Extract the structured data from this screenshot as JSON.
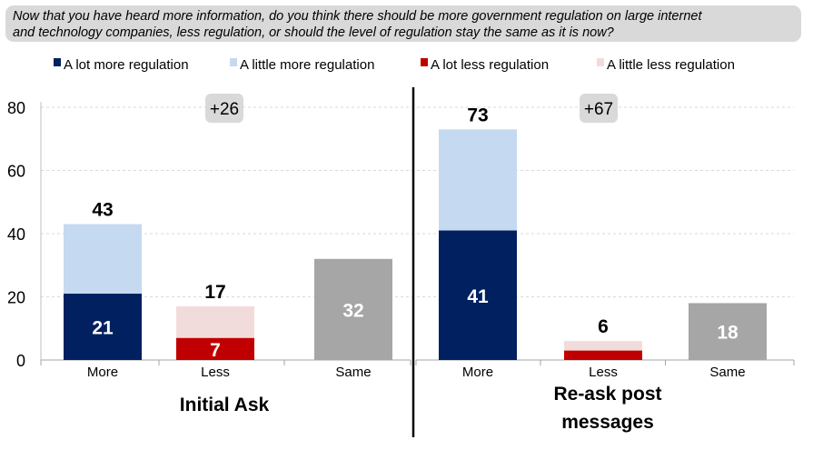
{
  "question": "Now that you have heard more information, do you think there should be more government regulation on large internet\nand technology companies, less regulation, or should the level of regulation stay the same as it is now?",
  "legend": [
    {
      "label": "A lot more regulation",
      "color": "#002060"
    },
    {
      "label": "A little more regulation",
      "color": "#c5d9f1"
    },
    {
      "label": "A lot less regulation",
      "color": "#c00000"
    },
    {
      "label": "A little less regulation",
      "color": "#f2dcdb"
    }
  ],
  "chart_data": [
    {
      "type": "bar",
      "stacked": true,
      "title": "Initial Ask",
      "net_label": "+26",
      "categories": [
        "More",
        "Less",
        "Same"
      ],
      "series": [
        {
          "name": "A lot more regulation",
          "color": "#002060",
          "values": [
            21,
            null,
            null
          ]
        },
        {
          "name": "A little more regulation",
          "color": "#c5d9f1",
          "values": [
            22,
            null,
            null
          ]
        },
        {
          "name": "A lot less regulation",
          "color": "#c00000",
          "values": [
            null,
            7,
            null
          ]
        },
        {
          "name": "A little less regulation",
          "color": "#f2dcdb",
          "values": [
            null,
            10,
            null
          ]
        },
        {
          "color": "#a6a6a6",
          "values": [
            null,
            null,
            32
          ]
        }
      ],
      "segment_labels": [
        [
          "21"
        ],
        [
          "7"
        ],
        [
          "32"
        ]
      ],
      "totals": [
        "43",
        "17",
        ""
      ],
      "ylim": [
        0,
        80
      ],
      "yticks": [
        "0",
        "20",
        "40",
        "60",
        "80"
      ],
      "grid": true
    },
    {
      "type": "bar",
      "stacked": true,
      "title": "Re-ask post\nmessages",
      "net_label": "+67",
      "categories": [
        "More",
        "Less",
        "Same"
      ],
      "series": [
        {
          "name": "A lot more regulation",
          "color": "#002060",
          "values": [
            41,
            null,
            null
          ]
        },
        {
          "name": "A little more regulation",
          "color": "#c5d9f1",
          "values": [
            32,
            null,
            null
          ]
        },
        {
          "name": "A lot less regulation",
          "color": "#c00000",
          "values": [
            null,
            3,
            null
          ]
        },
        {
          "name": "A little less regulation",
          "color": "#f2dcdb",
          "values": [
            null,
            3,
            null
          ]
        },
        {
          "color": "#a6a6a6",
          "values": [
            null,
            null,
            18
          ]
        }
      ],
      "segment_labels": [
        [
          "41"
        ],
        [
          ""
        ],
        [
          "18"
        ]
      ],
      "totals": [
        "73",
        "6",
        ""
      ],
      "ylim": [
        0,
        80
      ],
      "grid": true
    }
  ]
}
